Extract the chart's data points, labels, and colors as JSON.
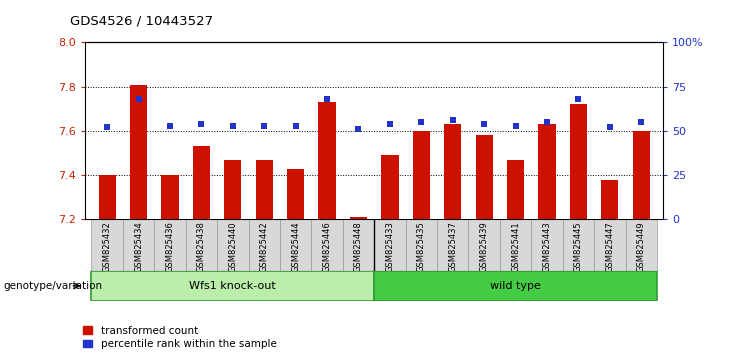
{
  "title": "GDS4526 / 10443527",
  "samples": [
    "GSM825432",
    "GSM825434",
    "GSM825436",
    "GSM825438",
    "GSM825440",
    "GSM825442",
    "GSM825444",
    "GSM825446",
    "GSM825448",
    "GSM825433",
    "GSM825435",
    "GSM825437",
    "GSM825439",
    "GSM825441",
    "GSM825443",
    "GSM825445",
    "GSM825447",
    "GSM825449"
  ],
  "bar_values": [
    7.4,
    7.81,
    7.4,
    7.53,
    7.47,
    7.47,
    7.43,
    7.73,
    7.21,
    7.49,
    7.6,
    7.63,
    7.58,
    7.47,
    7.63,
    7.72,
    7.38,
    7.6
  ],
  "percentile_values": [
    52,
    68,
    53,
    54,
    53,
    53,
    53,
    68,
    51,
    54,
    55,
    56,
    54,
    53,
    55,
    68,
    52,
    55
  ],
  "bar_bottom": 7.2,
  "ylim_left": [
    7.2,
    8.0
  ],
  "ylim_right": [
    0,
    100
  ],
  "yticks_left": [
    7.2,
    7.4,
    7.6,
    7.8,
    8.0
  ],
  "yticks_right": [
    0,
    25,
    50,
    75,
    100
  ],
  "ytick_labels_right": [
    "0",
    "25",
    "50",
    "75",
    "100%"
  ],
  "bar_color": "#cc1100",
  "dot_color": "#2233cc",
  "group1_label": "Wfs1 knock-out",
  "group2_label": "wild type",
  "group1_color": "#bbeeaa",
  "group2_color": "#44cc44",
  "group1_count": 9,
  "group2_count": 9,
  "genotype_label": "genotype/variation",
  "legend1": "transformed count",
  "legend2": "percentile rank within the sample",
  "bg_color": "#ffffff",
  "left_tick_color": "#cc2200",
  "right_tick_color": "#2233cc"
}
